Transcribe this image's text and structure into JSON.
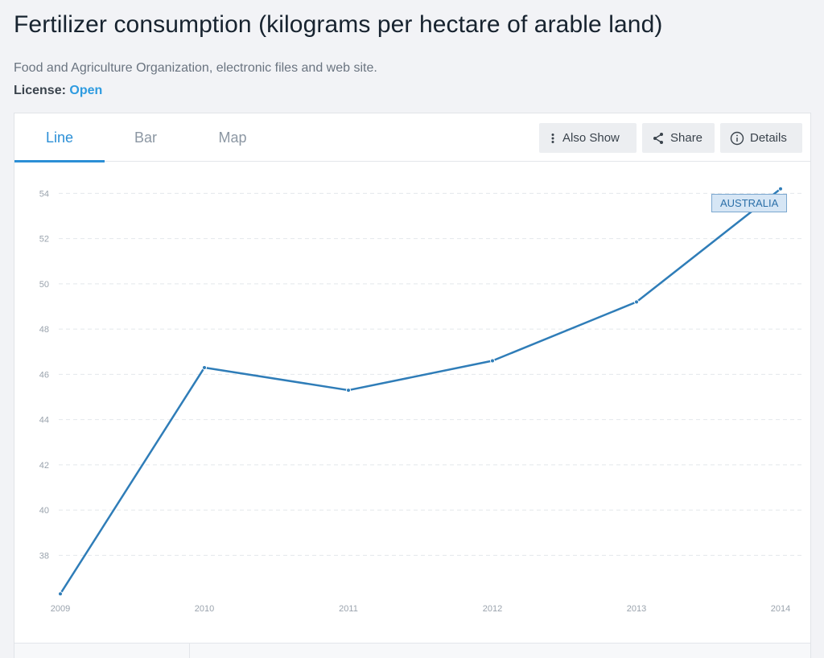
{
  "header": {
    "title": "Fertilizer consumption (kilograms per hectare of arable land)",
    "source": "Food and Agriculture Organization, electronic files and web site.",
    "license_label": "License:",
    "license_value": "Open"
  },
  "tabs": [
    {
      "label": "Line",
      "active": true
    },
    {
      "label": "Bar",
      "active": false
    },
    {
      "label": "Map",
      "active": false
    }
  ],
  "toolbar": {
    "also_show": "Also Show",
    "share": "Share",
    "details": "Details"
  },
  "colors": {
    "line": "#2f7db8",
    "accent": "#2b8fd6"
  },
  "chart_data": {
    "type": "line",
    "x": [
      2009,
      2010,
      2011,
      2012,
      2013,
      2014
    ],
    "y_ticks": [
      38,
      40,
      42,
      44,
      46,
      48,
      50,
      52,
      54
    ],
    "ylim": [
      36.2,
      55.4
    ],
    "series": [
      {
        "name": "AUSTRALIA",
        "values": [
          36.3,
          46.3,
          45.3,
          46.6,
          49.2,
          54.2
        ]
      }
    ],
    "grid": true,
    "title": "",
    "xlabel": "",
    "ylabel": ""
  }
}
